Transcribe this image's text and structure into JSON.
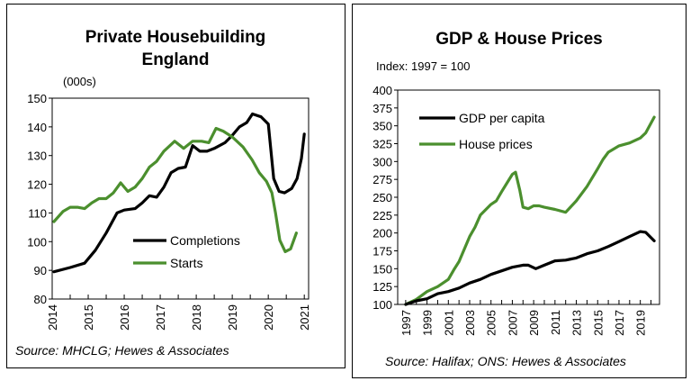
{
  "colors": {
    "green": "#4b8f2e",
    "black": "#000000"
  },
  "chart_data": [
    {
      "type": "line",
      "title_lines": [
        "Private Housebuilding",
        "England"
      ],
      "unit_label": "(000s)",
      "source": "Source: MHCLG; Hewes & Associates",
      "xlim": [
        2014,
        2021.12
      ],
      "ylim": [
        80,
        150
      ],
      "x_ticks": [
        2014,
        2015,
        2016,
        2017,
        2018,
        2019,
        2020,
        2021
      ],
      "y_ticks": [
        80,
        90,
        100,
        110,
        120,
        130,
        140,
        150
      ],
      "grid": false,
      "legend": "center",
      "series": [
        {
          "name": "Completions",
          "color": "#000000",
          "x": [
            2014.05,
            2014.5,
            2014.9,
            2015.2,
            2015.5,
            2015.8,
            2016.0,
            2016.3,
            2016.5,
            2016.7,
            2016.9,
            2017.1,
            2017.3,
            2017.5,
            2017.7,
            2017.9,
            2018.1,
            2018.3,
            2018.5,
            2018.8,
            2019.0,
            2019.2,
            2019.4,
            2019.56,
            2019.8,
            2020.0,
            2020.15,
            2020.3,
            2020.45,
            2020.65,
            2020.8,
            2020.92,
            2021.0
          ],
          "y": [
            89.5,
            91,
            92.5,
            97,
            103,
            110,
            111,
            111.5,
            113.5,
            116,
            115.5,
            119,
            124,
            125.5,
            126,
            133.5,
            131.5,
            131.5,
            132.5,
            134.5,
            137,
            140,
            141.5,
            144.5,
            143.5,
            141,
            122,
            117.5,
            117,
            118.5,
            122,
            129,
            137.5
          ]
        },
        {
          "name": "Starts",
          "color": "#4b8f2e",
          "x": [
            2014.05,
            2014.3,
            2014.5,
            2014.7,
            2014.9,
            2015.1,
            2015.3,
            2015.5,
            2015.7,
            2015.9,
            2016.1,
            2016.3,
            2016.5,
            2016.7,
            2016.9,
            2017.1,
            2017.4,
            2017.65,
            2017.9,
            2018.15,
            2018.35,
            2018.55,
            2018.75,
            2019.0,
            2019.3,
            2019.55,
            2019.75,
            2019.95,
            2020.1,
            2020.2,
            2020.32,
            2020.47,
            2020.62,
            2020.78
          ],
          "y": [
            107,
            110.5,
            112,
            112,
            111.5,
            113.5,
            115,
            115,
            117,
            120.5,
            117.5,
            119,
            122,
            126,
            128,
            131.5,
            135,
            132.5,
            135,
            135,
            134.5,
            139.5,
            138.5,
            136.5,
            133,
            128.5,
            124,
            121,
            117,
            110,
            100.5,
            96.5,
            97.5,
            103
          ]
        }
      ]
    },
    {
      "type": "line",
      "title": "GDP & House Prices",
      "subtitle": "Index: 1997 = 100",
      "source": "Source: Halifax; ONS: Hewes & Associates",
      "xlim": [
        1996.25,
        2020.8
      ],
      "ylim": [
        100,
        400
      ],
      "x_ticks": [
        1997,
        1999,
        2001,
        2003,
        2005,
        2007,
        2009,
        2011,
        2013,
        2015,
        2017,
        2019
      ],
      "y_ticks": [
        100,
        125,
        150,
        175,
        200,
        225,
        250,
        275,
        300,
        325,
        350,
        375,
        400
      ],
      "grid": false,
      "legend": "top-left",
      "series": [
        {
          "name": "House prices",
          "color": "#4b8f2e",
          "x": [
            1997,
            1998,
            1999,
            2000,
            2001,
            2001.5,
            2002,
            2003,
            2003.5,
            2004,
            2005,
            2005.5,
            2006,
            2006.5,
            2007,
            2007.3,
            2007.7,
            2008,
            2008.5,
            2009,
            2009.5,
            2010,
            2011,
            2012,
            2013,
            2014,
            2015,
            2015.5,
            2016,
            2017,
            2018,
            2019,
            2019.5,
            2020.3
          ],
          "y": [
            100,
            107,
            118,
            125,
            135,
            148,
            160,
            195,
            208,
            225,
            240,
            245,
            258,
            270,
            282,
            285,
            260,
            236,
            234,
            238,
            238,
            236,
            233,
            229,
            245,
            265,
            290,
            303,
            313,
            322,
            326,
            333,
            340,
            362
          ]
        },
        {
          "name": "GDP per capita",
          "color": "#000000",
          "x": [
            1997,
            1998,
            1999,
            2000,
            2001,
            2002,
            2003,
            2004,
            2005,
            2006,
            2007,
            2008,
            2008.5,
            2009.2,
            2010,
            2011,
            2012,
            2013,
            2014,
            2015,
            2016,
            2017,
            2018,
            2019,
            2019.5,
            2020.3
          ],
          "y": [
            100,
            105,
            108,
            115,
            118,
            123,
            130,
            135,
            142,
            147,
            152,
            155,
            155,
            150,
            155,
            161,
            162,
            165,
            171,
            175,
            181,
            188,
            195,
            202,
            201,
            189
          ]
        }
      ]
    }
  ]
}
